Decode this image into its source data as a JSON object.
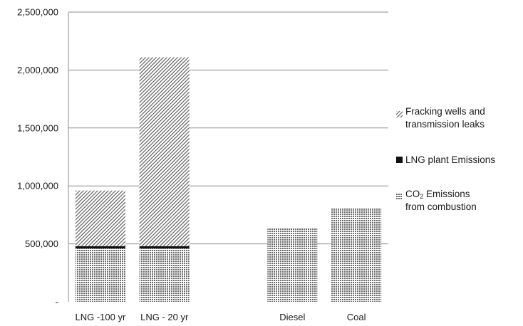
{
  "chart_data": {
    "type": "bar",
    "stacked": true,
    "categories": [
      "LNG -100 yr",
      "LNG - 20 yr",
      "",
      "Diesel",
      "Coal"
    ],
    "series": [
      {
        "key": "combustion",
        "name": "CO2 Emissions from combustion",
        "pattern": "dots",
        "values": [
          460000,
          460000,
          0,
          635000,
          810000
        ]
      },
      {
        "key": "plant",
        "name": "LNG plant Emissions",
        "pattern": "solid",
        "values": [
          20000,
          20000,
          0,
          0,
          0
        ]
      },
      {
        "key": "leaks",
        "name": "Fracking wells and transmission leaks",
        "pattern": "diagonal",
        "values": [
          480000,
          1630000,
          0,
          0,
          0
        ]
      }
    ],
    "ylim": [
      0,
      2500000
    ],
    "yticks": [
      {
        "value": 0,
        "label": "-"
      },
      {
        "value": 500000,
        "label": "500,000"
      },
      {
        "value": 1000000,
        "label": "1,000,000"
      },
      {
        "value": 1500000,
        "label": "1,500,000"
      },
      {
        "value": 2000000,
        "label": "2,000,000"
      },
      {
        "value": 2500000,
        "label": "2,500,000"
      }
    ],
    "grid": true,
    "legend_position": "right"
  },
  "legend": {
    "leaks": [
      "Fracking wells and",
      "transmission leaks"
    ],
    "plant": [
      "LNG plant Emissions"
    ],
    "combustion": {
      "prefix": "CO",
      "subscript": "2",
      "rest": " Emissions",
      "line2": "from combustion"
    }
  },
  "colors": {
    "dots": "#6e6e6e",
    "solid": "#111111",
    "diagonal": "#6a6a6a",
    "grid": "#8c8c8c"
  }
}
